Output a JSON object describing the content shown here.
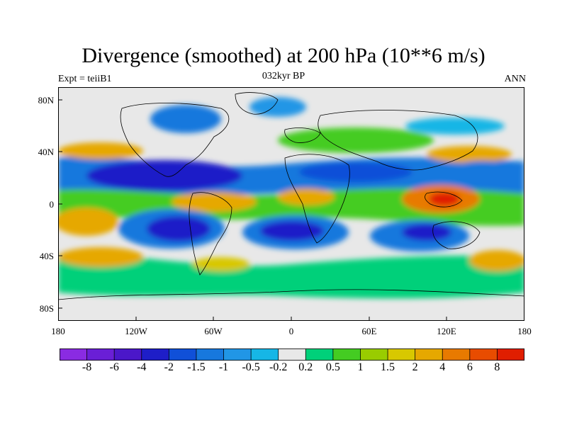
{
  "figure": {
    "title": "Divergence (smoothed) at 200 hPa (10**6 m/s)",
    "subtitle_left": "Expt = teiiB1",
    "subtitle_center": "032kyr BP",
    "subtitle_right": "ANN"
  },
  "chart_data": {
    "type": "heatmap",
    "variable": "Divergence (smoothed) at 200 hPa (10**6 m/s)",
    "x_tick_labels": [
      "180",
      "120W",
      "60W",
      "0",
      "60E",
      "120E",
      "180"
    ],
    "y_tick_labels": [
      "80N",
      "40N",
      "0",
      "40S",
      "80S"
    ],
    "xlim": [
      -180,
      180
    ],
    "ylim": [
      -90,
      90
    ],
    "colorbar": {
      "labels": [
        "-8",
        "-6",
        "-4",
        "-2",
        "-1.5",
        "-1",
        "-0.5",
        "-0.2",
        "0.2",
        "0.5",
        "1",
        "1.5",
        "2",
        "4",
        "6",
        "8"
      ],
      "colors": [
        "#8a2be2",
        "#6a1fd6",
        "#4b17c9",
        "#1e1ec8",
        "#1050d8",
        "#1778dd",
        "#2196e6",
        "#16b6e6",
        "#e8e8e8",
        "#00d07a",
        "#44cc22",
        "#99cc00",
        "#d8c800",
        "#e6a800",
        "#e87a00",
        "#e84c00",
        "#e01e00"
      ]
    },
    "background_color": "#e8e8e8",
    "coastline_color": "#000000"
  }
}
